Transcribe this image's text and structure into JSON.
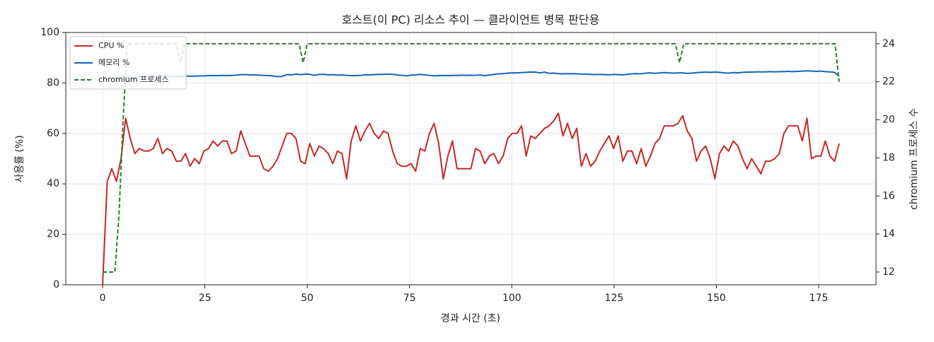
{
  "chart_data": {
    "type": "line",
    "title": "호스트(이 PC) 리소스 추이 — 클라이언트 병목 판단용",
    "xlabel": "경과 시간 (초)",
    "ylabel": "사용률 (%)",
    "y2label": "chromium 프로세스 수",
    "xlim": [
      -9,
      189
    ],
    "xticks": [
      0,
      25,
      50,
      75,
      100,
      125,
      150,
      175
    ],
    "ylim": [
      0,
      100
    ],
    "yticks": [
      0,
      20,
      40,
      60,
      80,
      100
    ],
    "y2lim": [
      11.33,
      24.59
    ],
    "y2ticks": [
      12,
      14,
      16,
      18,
      20,
      22,
      24
    ],
    "grid": true,
    "legend": "upper-left",
    "x": [
      0,
      1.125,
      2.25,
      3.375,
      4.5,
      5.625,
      6.75,
      7.875,
      9,
      10.125,
      11.25,
      12.375,
      13.5,
      14.625,
      15.75,
      16.875,
      18,
      19.125,
      20.25,
      21.375,
      22.5,
      23.625,
      24.75,
      25.875,
      27,
      28.125,
      29.25,
      30.375,
      31.5,
      32.625,
      33.75,
      34.875,
      36,
      37.125,
      38.25,
      39.375,
      40.5,
      41.625,
      42.75,
      43.875,
      45,
      46.125,
      47.25,
      48.375,
      49.5,
      50.625,
      51.75,
      52.875,
      54,
      55.125,
      56.25,
      57.375,
      58.5,
      59.625,
      60.75,
      61.875,
      63,
      64.125,
      65.25,
      66.375,
      67.5,
      68.625,
      69.75,
      70.875,
      72,
      73.125,
      74.25,
      75.375,
      76.5,
      77.625,
      78.75,
      79.875,
      81,
      82.125,
      83.25,
      84.375,
      85.5,
      86.625,
      87.75,
      88.875,
      90,
      91.125,
      92.25,
      93.375,
      94.5,
      95.625,
      96.75,
      97.875,
      99,
      100.125,
      101.25,
      102.375,
      103.5,
      104.625,
      105.75,
      106.875,
      108,
      109.125,
      110.25,
      111.375,
      112.5,
      113.625,
      114.75,
      115.875,
      117,
      118.125,
      119.25,
      120.375,
      121.5,
      122.625,
      123.75,
      124.875,
      126,
      127.125,
      128.25,
      129.375,
      130.5,
      131.625,
      132.75,
      133.875,
      135,
      136.125,
      137.25,
      138.375,
      139.5,
      140.625,
      141.75,
      142.875,
      144,
      145.125,
      146.25,
      147.375,
      148.5,
      149.625,
      150.75,
      151.875,
      153,
      154.125,
      155.25,
      156.375,
      157.5,
      158.625,
      159.75,
      160.875,
      162,
      163.125,
      164.25,
      165.375,
      166.5,
      167.625,
      168.75,
      169.875,
      171,
      172.125,
      173.25,
      174.375,
      175.5,
      176.625,
      177.75,
      178.875,
      180
    ],
    "series": [
      {
        "name": "CPU %",
        "color": "#c62828",
        "values": [
          0,
          41,
          46,
          41,
          50,
          66,
          58,
          52,
          54,
          53,
          53,
          54,
          58,
          52,
          54,
          53,
          49,
          49,
          52,
          47,
          50,
          48,
          53,
          54,
          57,
          55,
          57,
          57,
          52,
          53,
          61,
          56,
          51,
          51,
          51,
          46,
          45,
          47,
          50,
          55,
          60,
          60,
          58,
          49,
          48,
          56,
          51,
          55,
          54,
          52,
          48,
          53,
          52,
          42,
          57,
          63,
          57,
          61,
          64,
          60,
          58,
          61,
          60,
          53,
          48,
          47,
          47,
          48,
          45,
          54,
          53,
          60,
          64,
          56,
          42,
          51,
          57,
          46,
          46,
          46,
          46,
          54,
          53,
          48,
          51,
          52,
          48,
          51,
          58,
          60,
          60,
          63,
          51,
          59,
          58,
          60,
          62,
          63,
          65,
          68,
          59,
          64,
          58,
          62,
          47,
          52,
          47,
          49,
          53,
          56,
          59,
          54,
          59,
          49,
          53,
          53,
          48,
          54,
          47,
          51,
          56,
          58,
          63,
          63,
          63,
          64,
          67,
          61,
          58,
          49,
          53,
          55,
          50,
          42,
          52,
          55,
          53,
          57,
          55,
          50,
          46,
          50,
          47,
          44,
          49,
          49,
          50,
          52,
          60,
          63,
          63,
          63,
          57,
          66,
          50,
          51,
          51,
          57,
          51,
          49,
          56
        ]
      },
      {
        "name": "메모리 %",
        "color": "#1565c0",
        "values": [
          82.0,
          82.1,
          82.1,
          82.2,
          82.2,
          82.3,
          82.3,
          82.3,
          82.4,
          82.4,
          82.4,
          82.5,
          82.5,
          82.5,
          82.5,
          82.6,
          82.6,
          82.6,
          82.7,
          82.7,
          82.7,
          82.8,
          82.8,
          82.9,
          82.9,
          82.9,
          83.0,
          82.9,
          83.0,
          83.1,
          83.3,
          83.3,
          83.2,
          83.2,
          83.1,
          83.0,
          82.9,
          82.8,
          82.5,
          82.6,
          83.3,
          83.2,
          83.5,
          83.3,
          83.5,
          83.4,
          83.0,
          83.4,
          83.4,
          83.2,
          83.3,
          83.1,
          83.2,
          83.0,
          82.9,
          82.9,
          83.0,
          83.2,
          83.2,
          83.3,
          83.4,
          83.4,
          83.5,
          83.4,
          83.2,
          83.0,
          82.8,
          83.1,
          83.2,
          83.4,
          83.2,
          83.0,
          82.8,
          82.9,
          83.0,
          82.9,
          83.0,
          83.0,
          83.1,
          83.0,
          83.1,
          83.0,
          83.2,
          82.9,
          83.1,
          83.4,
          83.6,
          83.7,
          83.9,
          84.0,
          84.0,
          84.1,
          84.2,
          84.3,
          84.3,
          84.0,
          84.3,
          83.8,
          83.9,
          83.7,
          83.6,
          83.7,
          83.7,
          83.6,
          83.5,
          83.5,
          83.4,
          83.3,
          83.4,
          83.3,
          83.2,
          83.4,
          83.3,
          83.2,
          83.4,
          83.6,
          83.7,
          83.6,
          83.9,
          84.0,
          83.8,
          84.0,
          84.1,
          84.0,
          83.9,
          84.0,
          84.0,
          83.8,
          83.9,
          84.1,
          84.2,
          84.3,
          84.2,
          84.3,
          84.2,
          84.0,
          83.9,
          84.1,
          84.0,
          84.2,
          84.3,
          84.3,
          84.4,
          84.4,
          84.4,
          84.5,
          84.4,
          84.5,
          84.5,
          84.6,
          84.5,
          84.6,
          84.7,
          84.8,
          84.7,
          84.6,
          84.7,
          84.5,
          84.4,
          84.2,
          82.6
        ]
      },
      {
        "name": "chromium 프로세스",
        "color": "#2e7d32",
        "axis": "y2",
        "dashed": true,
        "x": [
          0,
          1,
          2,
          3,
          4,
          5,
          6,
          18,
          19,
          20,
          48,
          49,
          50,
          140,
          141,
          142,
          179,
          180
        ],
        "values": [
          12,
          12,
          12,
          12,
          15,
          20,
          24,
          24,
          23,
          24,
          24,
          23,
          24,
          24,
          23,
          24,
          24,
          22
        ]
      }
    ]
  }
}
